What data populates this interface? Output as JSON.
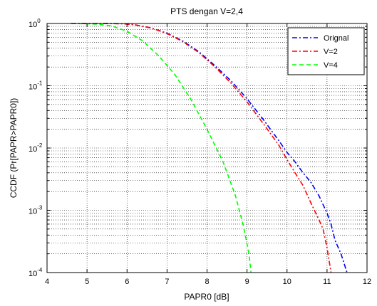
{
  "chart_data": {
    "type": "line",
    "title": "PTS dengan V=2,4",
    "xlabel": "PAPR0 [dB]",
    "ylabel": "CCDF (Pr[PAPR>PAPR0])",
    "xlim": [
      4,
      12
    ],
    "ylim": [
      0.0001,
      1
    ],
    "yscale": "log",
    "grid": true,
    "legend_position": "top-right",
    "x_ticks": [
      4,
      5,
      6,
      7,
      8,
      9,
      10,
      11,
      12
    ],
    "y_ticks": [
      {
        "value": 1,
        "mantissa": "10",
        "exponent": "0"
      },
      {
        "value": 0.1,
        "mantissa": "10",
        "exponent": "-1"
      },
      {
        "value": 0.01,
        "mantissa": "10",
        "exponent": "-2"
      },
      {
        "value": 0.001,
        "mantissa": "10",
        "exponent": "-3"
      },
      {
        "value": 0.0001,
        "mantissa": "10",
        "exponent": "-4"
      }
    ],
    "series": [
      {
        "name": "Orignal",
        "color": "#0000ff",
        "dash": "dash-dot",
        "points": [
          [
            4.6,
            1.0
          ],
          [
            5.4,
            1.0
          ],
          [
            5.9,
            0.99
          ],
          [
            6.2,
            0.95
          ],
          [
            6.6,
            0.85
          ],
          [
            7.0,
            0.7
          ],
          [
            7.4,
            0.52
          ],
          [
            7.8,
            0.35
          ],
          [
            8.2,
            0.21
          ],
          [
            8.6,
            0.12
          ],
          [
            9.0,
            0.062
          ],
          [
            9.4,
            0.029
          ],
          [
            9.8,
            0.013
          ],
          [
            10.0,
            0.0085
          ],
          [
            10.2,
            0.006
          ],
          [
            10.4,
            0.004
          ],
          [
            10.6,
            0.0028
          ],
          [
            10.8,
            0.0017
          ],
          [
            11.0,
            0.0009
          ],
          [
            11.1,
            0.0006
          ],
          [
            11.2,
            0.00033
          ],
          [
            11.35,
            0.0002
          ],
          [
            11.5,
            0.0001
          ]
        ]
      },
      {
        "name": "V=2",
        "color": "#ff0000",
        "dash": "dash-dot",
        "points": [
          [
            4.6,
            1.0
          ],
          [
            5.4,
            1.0
          ],
          [
            5.9,
            0.99
          ],
          [
            6.2,
            0.95
          ],
          [
            6.6,
            0.85
          ],
          [
            7.0,
            0.69
          ],
          [
            7.4,
            0.51
          ],
          [
            7.8,
            0.34
          ],
          [
            8.2,
            0.2
          ],
          [
            8.6,
            0.11
          ],
          [
            9.0,
            0.055
          ],
          [
            9.4,
            0.025
          ],
          [
            9.8,
            0.011
          ],
          [
            10.0,
            0.0065
          ],
          [
            10.2,
            0.004
          ],
          [
            10.4,
            0.0025
          ],
          [
            10.6,
            0.0013
          ],
          [
            10.8,
            0.0007
          ],
          [
            10.9,
            0.0005
          ],
          [
            11.0,
            0.00025
          ],
          [
            11.1,
            0.0001
          ]
        ]
      },
      {
        "name": "V=4",
        "color": "#00ff00",
        "dash": "dashed",
        "points": [
          [
            4.6,
            1.0
          ],
          [
            5.2,
            0.98
          ],
          [
            5.6,
            0.92
          ],
          [
            6.0,
            0.75
          ],
          [
            6.4,
            0.52
          ],
          [
            6.8,
            0.3
          ],
          [
            7.2,
            0.15
          ],
          [
            7.6,
            0.06
          ],
          [
            8.0,
            0.02
          ],
          [
            8.4,
            0.006
          ],
          [
            8.7,
            0.0018
          ],
          [
            8.9,
            0.0006
          ],
          [
            9.05,
            0.0002
          ],
          [
            9.1,
            0.0001
          ]
        ]
      }
    ]
  }
}
